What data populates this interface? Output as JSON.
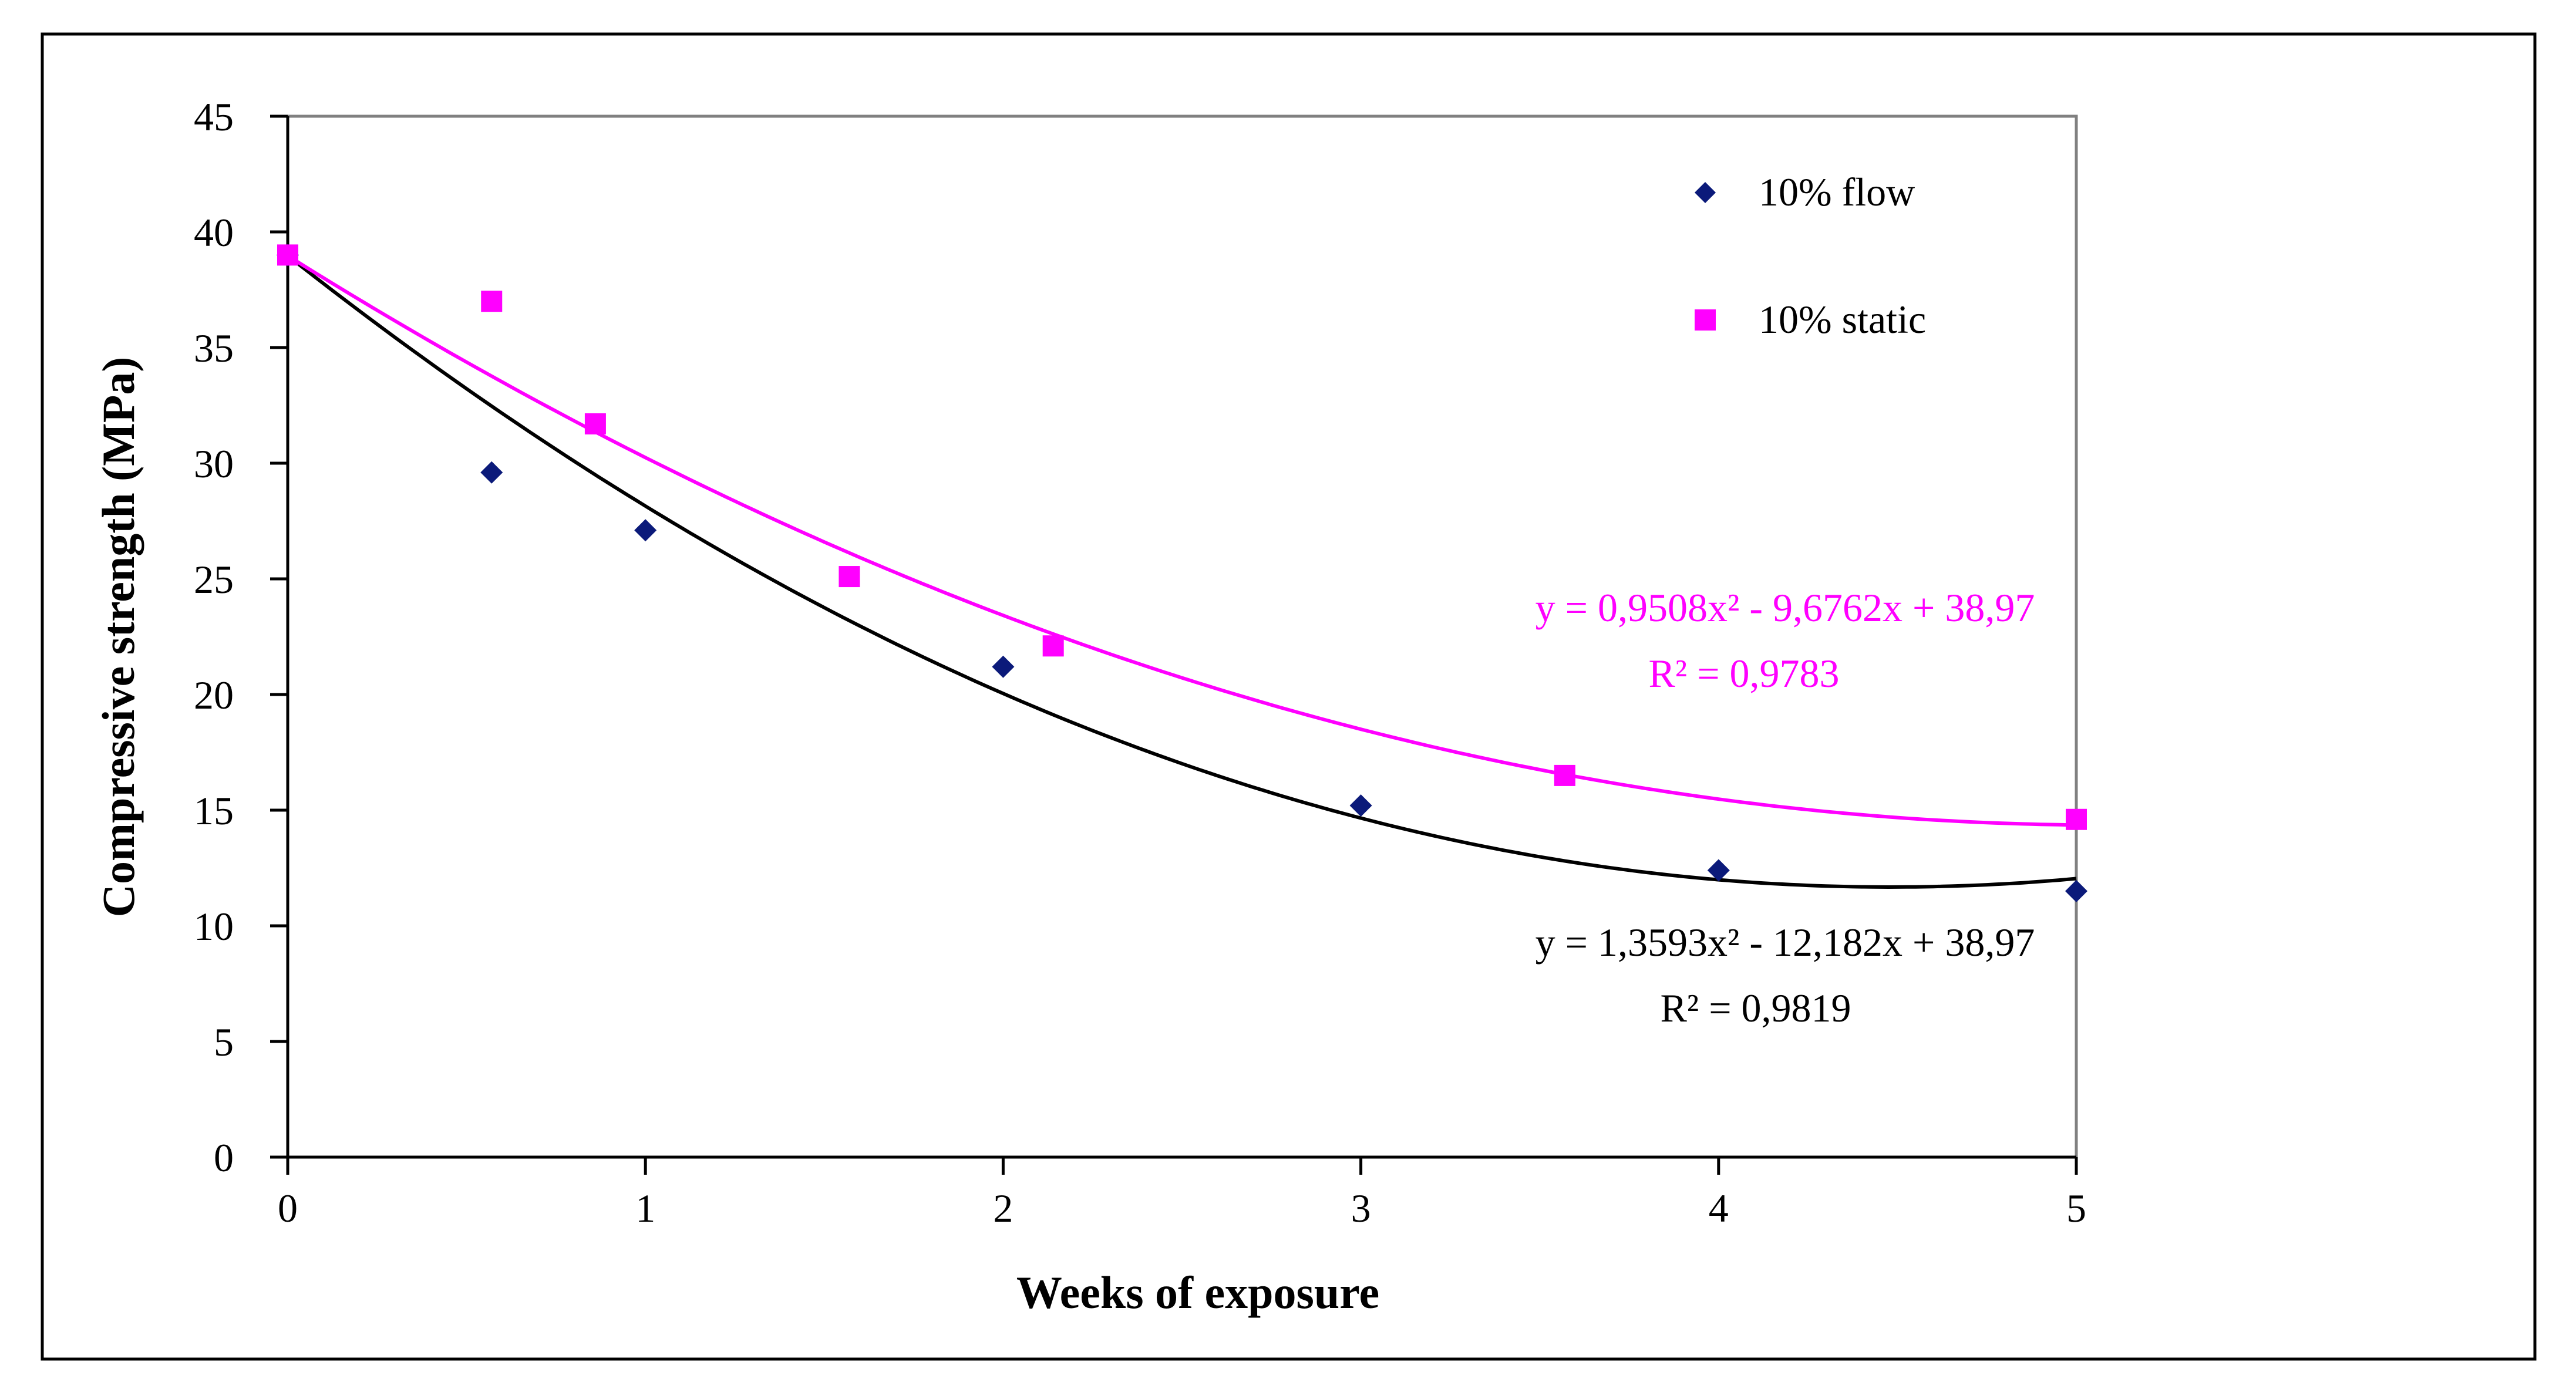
{
  "chart_data": {
    "type": "scatter",
    "xlabel": "Weeks of exposure",
    "ylabel": "Compressive strength (MPa)",
    "xlim": [
      0,
      5
    ],
    "ylim": [
      0,
      45
    ],
    "x_ticks": [
      "0",
      "1",
      "2",
      "3",
      "4",
      "5"
    ],
    "y_ticks": [
      "0",
      "5",
      "10",
      "15",
      "20",
      "25",
      "30",
      "35",
      "40",
      "45"
    ],
    "grid": false,
    "legend_position": "top-right",
    "series": [
      {
        "name": "10% flow",
        "marker": "diamond",
        "color": "#0B1A7A",
        "points": [
          {
            "x": 0,
            "y": 39.0
          },
          {
            "x": 0.57,
            "y": 29.6
          },
          {
            "x": 1,
            "y": 27.1
          },
          {
            "x": 2,
            "y": 21.2
          },
          {
            "x": 3,
            "y": 15.2
          },
          {
            "x": 4,
            "y": 12.4
          },
          {
            "x": 5,
            "y": 11.5
          }
        ],
        "trendline": {
          "type": "polynomial-2",
          "a": 1.3593,
          "b": -12.182,
          "c": 38.97,
          "color": "#000000",
          "equation": "y = 1,3593x² - 12,182x + 38,97",
          "r2": "R² = 0,9819"
        }
      },
      {
        "name": "10% static",
        "marker": "square",
        "color": "#FF00FF",
        "points": [
          {
            "x": 0,
            "y": 39.0
          },
          {
            "x": 0.57,
            "y": 37.0
          },
          {
            "x": 0.86,
            "y": 31.7
          },
          {
            "x": 1.57,
            "y": 25.1
          },
          {
            "x": 2.14,
            "y": 22.1
          },
          {
            "x": 3.57,
            "y": 16.5
          },
          {
            "x": 5,
            "y": 14.6
          }
        ],
        "trendline": {
          "type": "polynomial-2",
          "a": 0.9508,
          "b": -9.6762,
          "c": 38.97,
          "color": "#FF00FF",
          "equation": "y = 0,9508x² - 9,6762x + 38,97",
          "r2": "R² = 0,9783"
        }
      }
    ]
  }
}
